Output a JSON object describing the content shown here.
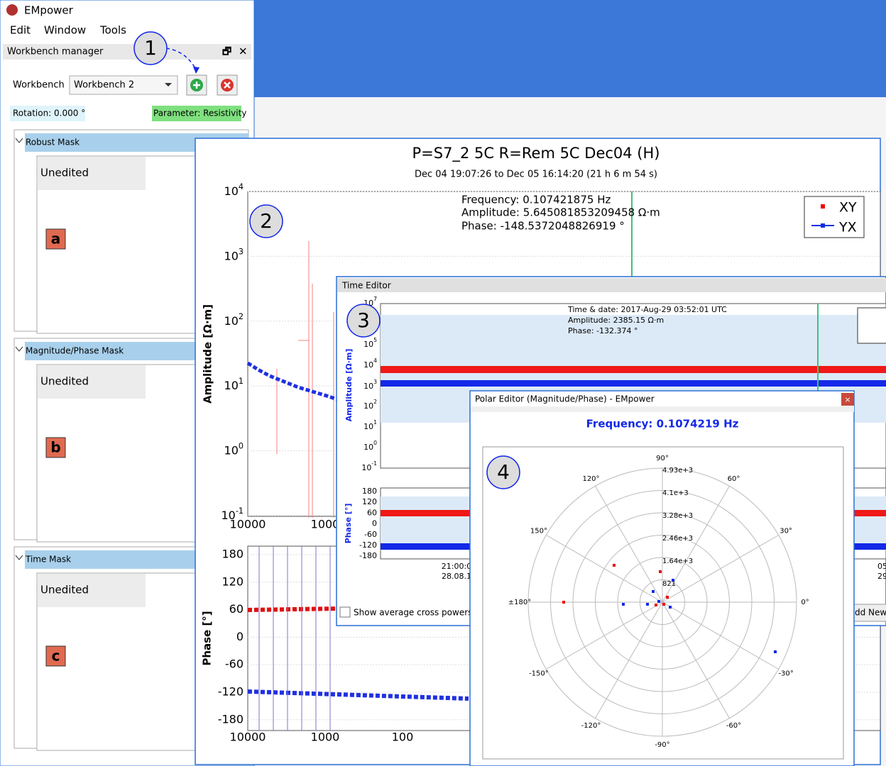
{
  "app": {
    "title": "EMpower",
    "menu": [
      "Edit",
      "Window",
      "Tools"
    ]
  },
  "workbench_manager": {
    "title": "Workbench manager",
    "workbench_label": "Workbench",
    "workbench_value": "Workbench 2",
    "rotation": "Rotation: 0.000 °",
    "parameter": "Parameter: Resistivity",
    "masks": [
      {
        "title": "Robust Mask",
        "status": "Unedited",
        "tag": "a"
      },
      {
        "title": "Magnitude/Phase Mask",
        "status": "Unedited",
        "tag": "b"
      },
      {
        "title": "Time Mask",
        "status": "Unedited",
        "tag": "c"
      }
    ]
  },
  "callouts": [
    "1",
    "2",
    "3",
    "4"
  ],
  "main_plot": {
    "title": "P=S7_2 5C R=Rem 5C Dec04 (H)",
    "subtitle": "Dec 04 19:07:26 to Dec 05 16:14:20  (21 h 6 m 54 s)",
    "info": [
      "Frequency: 0.107421875 Hz",
      "Amplitude: 5.645081853209458 Ω·m",
      "Phase: -148.5372048826919 °"
    ],
    "legend": [
      "XY",
      "YX"
    ],
    "amplitude_axis_label": "Amplitude [Ω·m]",
    "amplitude_ticks": [
      {
        "base": "10",
        "exp": "4"
      },
      {
        "base": "10",
        "exp": "3"
      },
      {
        "base": "10",
        "exp": "2"
      },
      {
        "base": "10",
        "exp": "1"
      },
      {
        "base": "10",
        "exp": "0"
      },
      {
        "base": "10",
        "exp": "-1"
      }
    ],
    "amplitude_x_ticks": [
      "10000",
      "1000"
    ],
    "phase_axis_label": "Phase [°]",
    "phase_ticks": [
      "180",
      "120",
      "60",
      "0",
      "-60",
      "-120",
      "-180"
    ],
    "phase_x_ticks": [
      "10000",
      "1000",
      "100"
    ]
  },
  "time_editor": {
    "title": "Time Editor",
    "info": [
      "Time & date: 2017-Aug-29 03:52:01 UTC",
      "Amplitude: 2385.15 Ω·m",
      "Phase: -132.374 °"
    ],
    "amplitude_axis_label": "Amplitude [Ω·m]",
    "amplitude_ticks": [
      {
        "base": "10",
        "exp": "7"
      },
      {
        "base": "10",
        "exp": "5"
      },
      {
        "base": "10",
        "exp": "4"
      },
      {
        "base": "10",
        "exp": "3"
      },
      {
        "base": "10",
        "exp": "2"
      },
      {
        "base": "10",
        "exp": "1"
      },
      {
        "base": "10",
        "exp": "0"
      },
      {
        "base": "10",
        "exp": "-1"
      }
    ],
    "phase_axis_label": "Phase [°]",
    "phase_ticks": [
      "180",
      "120",
      "60",
      "0",
      "-60",
      "-120",
      "-180"
    ],
    "x_ticks": [
      [
        "21:00:0",
        "28.08.1"
      ],
      [
        "05",
        "29"
      ]
    ],
    "checkbox": "Show average cross powers",
    "button": "dd New"
  },
  "polar_editor": {
    "title": "Polar Editor (Magnitude/Phase) - EMpower",
    "frequency": "Frequency: 0.1074219 Hz",
    "angle_labels": [
      "90°",
      "60°",
      "30°",
      "0°",
      "-30°",
      "-60°",
      "-90°",
      "-120°",
      "-150°",
      "±180°",
      "150°",
      "120°"
    ],
    "radial_labels": [
      "4.93e+3",
      "4.1e+3",
      "3.28e+3",
      "2.46e+3",
      "1.64e+3",
      "821"
    ]
  }
}
